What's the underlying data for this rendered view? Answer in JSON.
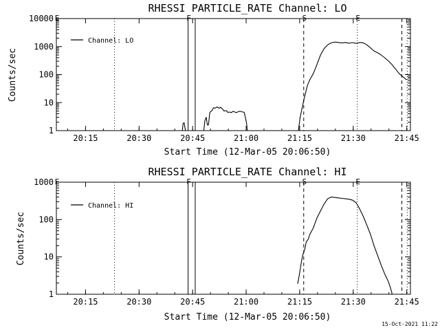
{
  "footer": {
    "timestamp": "15-Oct-2021 11:22"
  },
  "chart_data": [
    {
      "type": "line",
      "title": "RHESSI PARTICLE_RATE Channel: LO",
      "xlabel": "Start Time (12-Mar-05 20:06:50)",
      "ylabel": "Counts/sec",
      "x_unit": "minutes after 20:06:50",
      "xlim": [
        0,
        99.2
      ],
      "ylim": [
        1,
        10000
      ],
      "yscale": "log",
      "x_ticks": [
        {
          "label": "20:15",
          "value": 8.17
        },
        {
          "label": "20:30",
          "value": 23.17
        },
        {
          "label": "20:45",
          "value": 38.17
        },
        {
          "label": "21:00",
          "value": 53.17
        },
        {
          "label": "21:15",
          "value": 68.17
        },
        {
          "label": "21:30",
          "value": 83.17
        },
        {
          "label": "21:45",
          "value": 98.17
        }
      ],
      "y_ticks": [
        {
          "label": "1",
          "value": 1
        },
        {
          "label": "10",
          "value": 10
        },
        {
          "label": "100",
          "value": 100
        },
        {
          "label": "1000",
          "value": 1000
        },
        {
          "label": "10000",
          "value": 10000
        }
      ],
      "legend": {
        "location": "top-left",
        "entry": "Channel: LO"
      },
      "grid": false,
      "event_markers": [
        {
          "label": "E",
          "x": 0.0,
          "style": "dotted"
        },
        {
          "label": "F",
          "x": 36.9,
          "style": "solid"
        },
        {
          "label": "",
          "x": 38.9,
          "style": "solid"
        },
        {
          "label": "S",
          "x": 69.3,
          "style": "dashed"
        },
        {
          "label": "E",
          "x": 84.3,
          "style": "dotted"
        },
        {
          "label": "",
          "x": 96.8,
          "style": "dashed"
        },
        {
          "label": "",
          "x": 98.3,
          "style": "dotted"
        },
        {
          "label": "",
          "x": 16.3,
          "style": "dotted"
        }
      ],
      "series": [
        {
          "name": "Channel: LO",
          "segments": [
            [
              [
                35.3,
                1.0
              ],
              [
                35.5,
                1.8
              ],
              [
                35.8,
                1.9
              ],
              [
                36.0,
                1.3
              ],
              [
                36.2,
                1.0
              ]
            ],
            [
              [
                41.3,
                1.0
              ],
              [
                41.6,
                2.3
              ],
              [
                42.0,
                3.0
              ],
              [
                42.3,
                1.6
              ],
              [
                42.6,
                1.6
              ],
              [
                43.0,
                4.5
              ],
              [
                43.6,
                5.2
              ],
              [
                44.0,
                6.5
              ],
              [
                44.6,
                6.4
              ],
              [
                45.0,
                7.0
              ],
              [
                45.6,
                6.3
              ],
              [
                46.0,
                6.8
              ],
              [
                46.5,
                6.0
              ],
              [
                47.0,
                5.0
              ],
              [
                47.6,
                5.2
              ],
              [
                48.0,
                4.5
              ],
              [
                48.6,
                4.6
              ],
              [
                49.0,
                4.4
              ],
              [
                49.5,
                4.9
              ],
              [
                50.0,
                4.6
              ],
              [
                50.5,
                4.4
              ],
              [
                51.0,
                4.8
              ],
              [
                51.5,
                4.9
              ],
              [
                52.0,
                4.7
              ],
              [
                52.6,
                4.5
              ],
              [
                52.9,
                3.2
              ],
              [
                53.3,
                1.8
              ],
              [
                53.5,
                1.0
              ]
            ],
            [
              [
                67.8,
                1.0
              ],
              [
                68.3,
                3.0
              ],
              [
                68.8,
                6.0
              ],
              [
                69.3,
                12
              ],
              [
                69.8,
                22
              ],
              [
                70.3,
                40
              ],
              [
                71.0,
                65
              ],
              [
                72.0,
                110
              ],
              [
                73.0,
                230
              ],
              [
                74.0,
                500
              ],
              [
                75.0,
                850
              ],
              [
                76.0,
                1150
              ],
              [
                77.0,
                1350
              ],
              [
                78.0,
                1450
              ],
              [
                79.0,
                1400
              ],
              [
                80.0,
                1350
              ],
              [
                81.0,
                1400
              ],
              [
                82.0,
                1320
              ],
              [
                83.0,
                1380
              ],
              [
                84.0,
                1300
              ],
              [
                85.0,
                1400
              ],
              [
                86.0,
                1350
              ],
              [
                87.0,
                1150
              ],
              [
                88.0,
                900
              ],
              [
                89.0,
                700
              ],
              [
                90.0,
                600
              ],
              [
                91.0,
                500
              ],
              [
                92.0,
                400
              ],
              [
                93.0,
                310
              ],
              [
                94.0,
                230
              ],
              [
                95.0,
                160
              ],
              [
                96.0,
                110
              ],
              [
                96.8,
                90
              ],
              [
                97.3,
                80
              ],
              [
                97.8,
                70
              ],
              [
                98.2,
                65
              ]
            ]
          ]
        }
      ]
    },
    {
      "type": "line",
      "title": "RHESSI PARTICLE_RATE Channel: HI",
      "xlabel": "Start Time (12-Mar-05 20:06:50)",
      "ylabel": "Counts/sec",
      "x_unit": "minutes after 20:06:50",
      "xlim": [
        0,
        99.2
      ],
      "ylim": [
        1,
        1000
      ],
      "yscale": "log",
      "x_ticks": [
        {
          "label": "20:15",
          "value": 8.17
        },
        {
          "label": "20:30",
          "value": 23.17
        },
        {
          "label": "20:45",
          "value": 38.17
        },
        {
          "label": "21:00",
          "value": 53.17
        },
        {
          "label": "21:15",
          "value": 68.17
        },
        {
          "label": "21:30",
          "value": 83.17
        },
        {
          "label": "21:45",
          "value": 98.17
        }
      ],
      "y_ticks": [
        {
          "label": "1",
          "value": 1
        },
        {
          "label": "10",
          "value": 10
        },
        {
          "label": "100",
          "value": 100
        },
        {
          "label": "1000",
          "value": 1000
        }
      ],
      "legend": {
        "location": "top-left",
        "entry": "Channel: HI"
      },
      "grid": false,
      "event_markers": [
        {
          "label": "E",
          "x": 0.0,
          "style": "dotted"
        },
        {
          "label": "F",
          "x": 36.9,
          "style": "solid"
        },
        {
          "label": "",
          "x": 38.9,
          "style": "solid"
        },
        {
          "label": "S",
          "x": 69.3,
          "style": "dashed"
        },
        {
          "label": "E",
          "x": 84.3,
          "style": "dotted"
        },
        {
          "label": "",
          "x": 96.8,
          "style": "dashed"
        },
        {
          "label": "",
          "x": 98.3,
          "style": "dotted"
        },
        {
          "label": "",
          "x": 16.3,
          "style": "dotted"
        }
      ],
      "series": [
        {
          "name": "Channel: HI",
          "segments": [
            [
              [
                67.6,
                1.9
              ],
              [
                68.0,
                3.0
              ],
              [
                68.5,
                6.0
              ],
              [
                69.0,
                11
              ],
              [
                69.6,
                16
              ],
              [
                70.0,
                25
              ],
              [
                70.6,
                30
              ],
              [
                71.0,
                40
              ],
              [
                72.0,
                60
              ],
              [
                73.0,
                110
              ],
              [
                74.0,
                170
              ],
              [
                75.0,
                260
              ],
              [
                76.0,
                360
              ],
              [
                77.0,
                400
              ],
              [
                78.0,
                390
              ],
              [
                79.0,
                380
              ],
              [
                80.0,
                370
              ],
              [
                81.0,
                360
              ],
              [
                82.0,
                350
              ],
              [
                83.0,
                330
              ],
              [
                84.0,
                280
              ],
              [
                85.0,
                190
              ],
              [
                86.0,
                120
              ],
              [
                87.0,
                70
              ],
              [
                88.0,
                40
              ],
              [
                89.0,
                20
              ],
              [
                90.0,
                11
              ],
              [
                91.0,
                6.0
              ],
              [
                92.0,
                3.5
              ],
              [
                93.0,
                2.2
              ],
              [
                93.7,
                1.4
              ],
              [
                94.1,
                1.0
              ]
            ]
          ]
        }
      ]
    }
  ]
}
